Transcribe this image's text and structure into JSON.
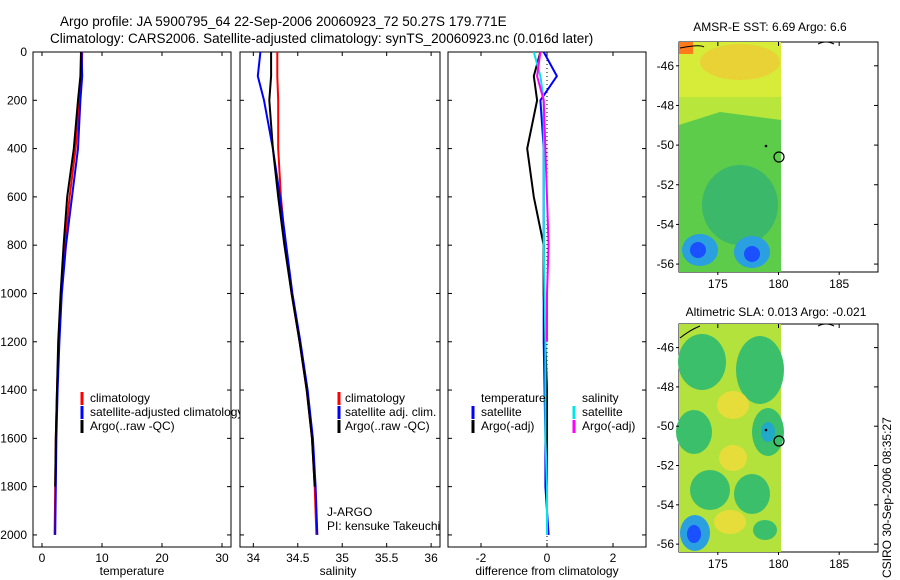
{
  "header": {
    "line1": "Argo profile: JA 5900795_64 22-Sep-2006 20060923_72 50.27S 179.771E",
    "line2": "Climatology: CARS2006. Satellite-adjusted climatology: synTS_20060923.nc (0.016d later)"
  },
  "footer": {
    "timestamp": "CSIRO 30-Sep-2006 08:35:27"
  },
  "colors": {
    "climatology": "#ff0000",
    "satellite": "#0000ff",
    "argo": "#000000",
    "sat_sal": "#00e5e5",
    "argo_sal": "#ff00ff"
  },
  "chart_data": [
    {
      "id": "temperature",
      "type": "line",
      "xlabel": "temperature",
      "xlim": [
        -1.5,
        31.5
      ],
      "ylim": [
        2050,
        0
      ],
      "xticks": [
        0,
        10,
        20,
        30
      ],
      "yticks": [
        0,
        200,
        400,
        600,
        800,
        1000,
        1200,
        1400,
        1600,
        1800,
        2000
      ],
      "legend": [
        "climatology",
        "satellite-adjusted climatology",
        "Argo(..raw -QC)"
      ],
      "series": [
        {
          "name": "climatology",
          "color": "red",
          "x": [
            6.7,
            6.6,
            6.2,
            5.6,
            4.6,
            3.8,
            3.2,
            2.8,
            2.5,
            2.3,
            2.2,
            2.1
          ],
          "y": [
            0,
            100,
            200,
            400,
            600,
            800,
            1000,
            1200,
            1400,
            1600,
            1800,
            2000
          ]
        },
        {
          "name": "satellite-adjusted climatology",
          "color": "blue",
          "x": [
            6.6,
            6.7,
            6.4,
            6.0,
            5.0,
            4.0,
            3.3,
            2.9,
            2.6,
            2.4,
            2.3,
            2.2
          ],
          "y": [
            0,
            100,
            200,
            400,
            600,
            800,
            1000,
            1200,
            1400,
            1600,
            1800,
            2000
          ]
        },
        {
          "name": "Argo(..raw -QC)",
          "color": "black",
          "x": [
            6.5,
            6.4,
            6.0,
            5.3,
            4.2,
            3.6,
            3.1,
            2.7,
            2.5,
            2.3,
            2.2
          ],
          "y": [
            0,
            100,
            200,
            400,
            600,
            800,
            1000,
            1200,
            1400,
            1600,
            1800
          ]
        }
      ]
    },
    {
      "id": "salinity",
      "type": "line",
      "xlabel": "salinity",
      "xlim": [
        33.85,
        36.1
      ],
      "ylim": [
        2050,
        0
      ],
      "xticks": [
        34,
        34.5,
        35,
        35.5,
        36
      ],
      "legend": [
        "climatology",
        "satellite adj. clim.",
        "Argo(..raw -QC)"
      ],
      "annotations": [
        "J-ARGO",
        "PI: kensuke Takeuchi"
      ],
      "series": [
        {
          "name": "climatology",
          "color": "red",
          "x": [
            34.27,
            34.27,
            34.28,
            34.28,
            34.31,
            34.36,
            34.43,
            34.52,
            34.6,
            34.66,
            34.69,
            34.71
          ],
          "y": [
            0,
            100,
            200,
            400,
            600,
            800,
            1000,
            1200,
            1400,
            1600,
            1800,
            2000
          ]
        },
        {
          "name": "satellite adj. clim.",
          "color": "blue",
          "x": [
            34.08,
            34.05,
            34.12,
            34.22,
            34.3,
            34.37,
            34.44,
            34.53,
            34.61,
            34.67,
            34.7,
            34.72
          ],
          "y": [
            0,
            100,
            200,
            400,
            600,
            800,
            1000,
            1200,
            1400,
            1600,
            1800,
            2000
          ]
        },
        {
          "name": "Argo(..raw -QC)",
          "color": "black",
          "x": [
            34.2,
            34.2,
            34.18,
            34.22,
            34.28,
            34.35,
            34.43,
            34.52,
            34.6,
            34.66,
            34.69
          ],
          "y": [
            0,
            100,
            200,
            400,
            600,
            800,
            1000,
            1200,
            1400,
            1600,
            1800
          ]
        }
      ]
    },
    {
      "id": "difference",
      "type": "line",
      "xlabel": "difference from climatology",
      "xlim": [
        -3.0,
        3.0
      ],
      "ylim": [
        2050,
        0
      ],
      "xticks": [
        -2,
        0,
        2
      ],
      "legend_left": {
        "title": "temperature",
        "items": [
          "satellite",
          "Argo(-adj)"
        ]
      },
      "legend_right": {
        "title": "salinity",
        "items": [
          "satellite",
          "Argo(-adj)"
        ]
      },
      "series": [
        {
          "name": "temperature satellite",
          "color": "blue",
          "x": [
            -0.1,
            0.3,
            -0.2,
            -0.1,
            -0.1,
            -0.1,
            -0.05,
            -0.05,
            0.05
          ],
          "y": [
            0,
            100,
            200,
            400,
            800,
            1200,
            1600,
            1800,
            2000
          ]
        },
        {
          "name": "temperature Argo(-adj)",
          "color": "black",
          "x": [
            -0.2,
            -0.4,
            -0.3,
            -0.6,
            -0.4,
            -0.1,
            -0.1,
            0.0,
            0.0
          ],
          "y": [
            0,
            100,
            200,
            400,
            600,
            800,
            1000,
            1400,
            1800
          ]
        },
        {
          "name": "salinity satellite",
          "color": "cyan",
          "x": [
            -0.4,
            -0.2,
            -0.1,
            -0.1,
            -0.1,
            -0.05,
            -0.05,
            0.0,
            0.0
          ],
          "y": [
            0,
            100,
            200,
            400,
            800,
            1200,
            1600,
            1800,
            2000
          ]
        },
        {
          "name": "salinity Argo(-adj)",
          "color": "magenta",
          "x": [
            -0.2,
            -0.3,
            -0.1,
            -0.05,
            0.05,
            0.0,
            0.0
          ],
          "y": [
            0,
            100,
            200,
            400,
            800,
            1000,
            1200
          ]
        }
      ]
    }
  ],
  "maps": [
    {
      "title": "AMSR-E SST: 6.69 Argo: 6.6",
      "xticks": [
        175,
        180,
        185
      ],
      "yticks": [
        -46,
        -48,
        -50,
        -52,
        -54,
        -56
      ]
    },
    {
      "title": "Altimetric SLA: 0.013 Argo: -0.021",
      "xticks": [
        175,
        180,
        185
      ],
      "yticks": [
        -46,
        -48,
        -50,
        -52,
        -54,
        -56
      ]
    }
  ]
}
